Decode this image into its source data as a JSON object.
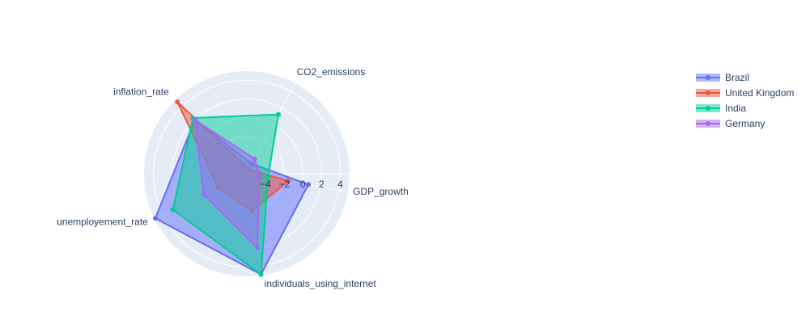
{
  "chart_data": {
    "type": "radar",
    "axes": [
      "GDP_growth",
      "CO2_emissions",
      "inflation_rate",
      "unemployement_rate",
      "individuals_using_internet"
    ],
    "radial_range": [
      -6,
      5
    ],
    "radial_ticks": [
      -4,
      -2,
      0,
      2,
      4
    ],
    "grid": true,
    "legend_position": "top-right",
    "series": [
      {
        "name": "Brazil",
        "color": "#636efa",
        "values": [
          0.7,
          -4.8,
          2.0,
          4.9,
          4.9
        ]
      },
      {
        "name": "United Kingdom",
        "color": "#EF553B",
        "values": [
          -1.5,
          -5.5,
          4.7,
          -2.6,
          -2.0
        ]
      },
      {
        "name": "India",
        "color": "#00cc96",
        "values": [
          -3.7,
          1.2,
          2.3,
          2.8,
          4.9
        ]
      },
      {
        "name": "Germany",
        "color": "#ab63fa",
        "values": [
          -4.6,
          -4.2,
          2.0,
          -0.9,
          2.0
        ]
      }
    ]
  }
}
